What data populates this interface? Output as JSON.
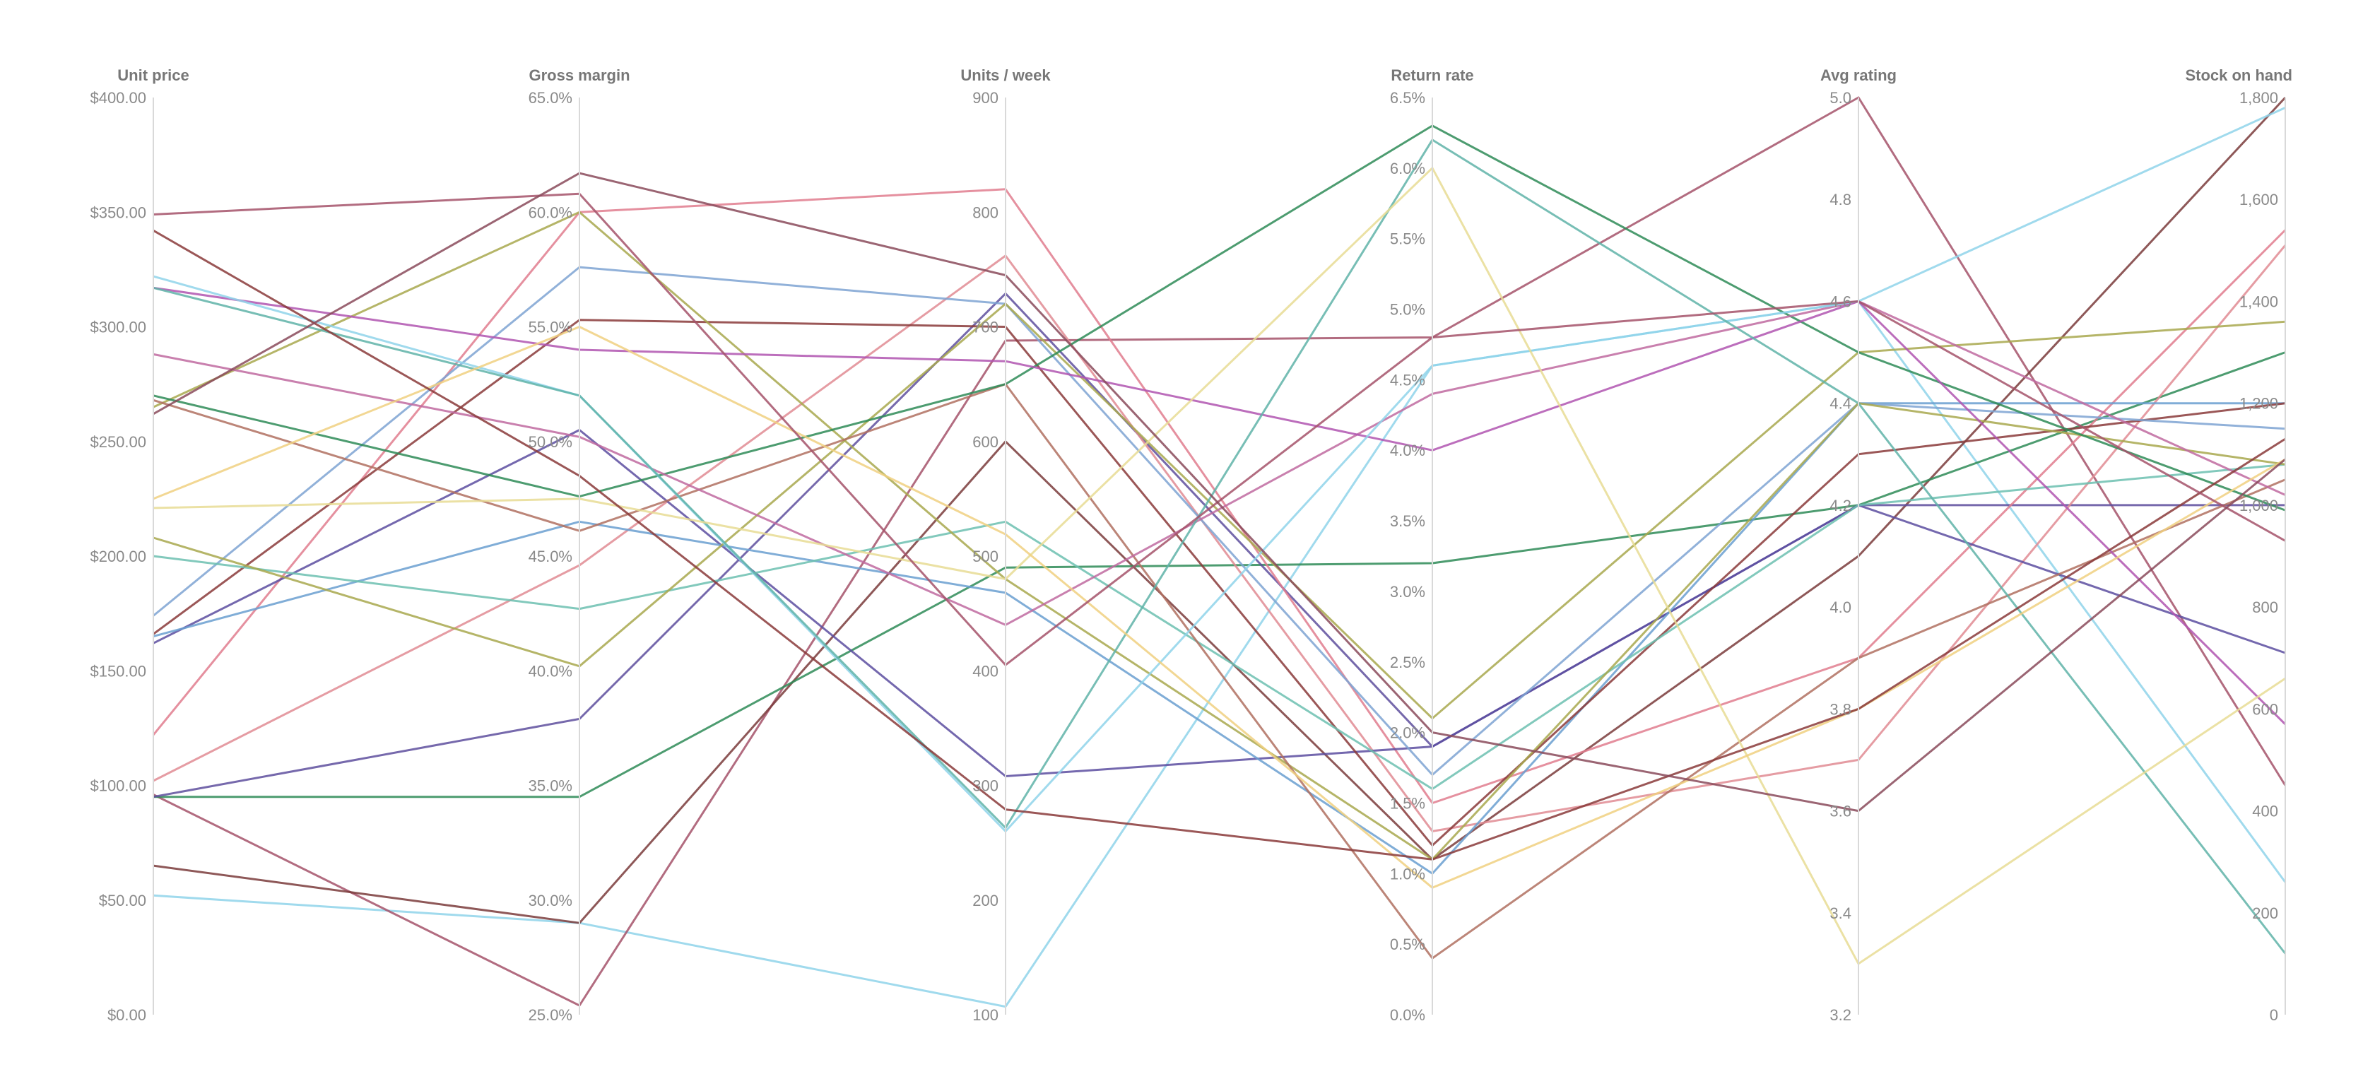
{
  "chart_data": {
    "type": "parallel-coordinates",
    "grid": false,
    "legend": "none",
    "axes": [
      {
        "key": "price",
        "title": "Unit price",
        "range": [
          0,
          400
        ],
        "ticks": [
          "$0.00",
          "$50.00",
          "$100.00",
          "$150.00",
          "$200.00",
          "$250.00",
          "$300.00",
          "$350.00",
          "$400.00"
        ]
      },
      {
        "key": "margin",
        "title": "Gross margin",
        "range": [
          25,
          65
        ],
        "ticks": [
          "25.0%",
          "30.0%",
          "35.0%",
          "40.0%",
          "45.0%",
          "50.0%",
          "55.0%",
          "60.0%",
          "65.0%"
        ]
      },
      {
        "key": "units",
        "title": "Units / week",
        "range": [
          100,
          900
        ],
        "ticks": [
          "100",
          "200",
          "300",
          "400",
          "500",
          "600",
          "700",
          "800",
          "900"
        ]
      },
      {
        "key": "returns",
        "title": "Return rate",
        "range": [
          0,
          6.5
        ],
        "ticks": [
          "0.0%",
          "0.5%",
          "1.0%",
          "1.5%",
          "2.0%",
          "2.5%",
          "3.0%",
          "3.5%",
          "4.0%",
          "4.5%",
          "5.0%",
          "5.5%",
          "6.0%",
          "6.5%"
        ]
      },
      {
        "key": "rating",
        "title": "Avg rating",
        "range": [
          3.2,
          5.0
        ],
        "ticks": [
          "3.2",
          "3.4",
          "3.6",
          "3.8",
          "4.0",
          "4.2",
          "4.4",
          "4.6",
          "4.8",
          "5.0"
        ]
      },
      {
        "key": "stock",
        "title": "Stock on hand",
        "range": [
          0,
          1800
        ],
        "ticks": [
          "0",
          "200",
          "400",
          "600",
          "800",
          "1,000",
          "1,200",
          "1,400",
          "1,600",
          "1,800"
        ]
      }
    ],
    "series": [
      {
        "color": "#8fd3ea",
        "values": [
          52,
          29.0,
          107,
          4.6,
          4.6,
          260
        ]
      },
      {
        "color": "#a4526a",
        "values": [
          96,
          25.4,
          688,
          4.8,
          5.0,
          450
        ]
      },
      {
        "color": "#7a3b3b",
        "values": [
          65,
          29.0,
          600,
          1.1,
          4.1,
          1800
        ]
      },
      {
        "color": "#2e8b57",
        "values": [
          95,
          34.5,
          490,
          3.2,
          4.2,
          1300
        ]
      },
      {
        "color": "#5e4f9e",
        "values": [
          95,
          37.9,
          729,
          1.9,
          4.2,
          1000
        ]
      },
      {
        "color": "#e08b93",
        "values": [
          102,
          44.6,
          762,
          1.3,
          3.7,
          1510
        ]
      },
      {
        "color": "#e07c8e",
        "values": [
          122,
          60.0,
          820,
          1.5,
          3.9,
          1540
        ]
      },
      {
        "color": "#5c4da0",
        "values": [
          162,
          50.5,
          308,
          1.9,
          4.2,
          710
        ]
      },
      {
        "color": "#6a9fd0",
        "values": [
          165,
          46.5,
          468,
          1.0,
          4.4,
          1200
        ]
      },
      {
        "color": "#8a3a3a",
        "values": [
          166,
          55.3,
          700,
          1.2,
          4.3,
          1200
        ]
      },
      {
        "color": "#7ea3d2",
        "values": [
          174,
          57.6,
          720,
          1.7,
          4.4,
          1150
        ]
      },
      {
        "color": "#6cbfb0",
        "values": [
          200,
          42.7,
          530,
          1.6,
          4.2,
          1080
        ]
      },
      {
        "color": "#a8a84e",
        "values": [
          208,
          40.2,
          720,
          2.1,
          4.5,
          1360
        ]
      },
      {
        "color": "#a8a84e",
        "values": [
          265,
          60.0,
          480,
          1.1,
          4.4,
          1080
        ]
      },
      {
        "color": "#b07060",
        "values": [
          268,
          46.1,
          650,
          0.4,
          3.9,
          1050
        ]
      },
      {
        "color": "#2e8b57",
        "values": [
          270,
          47.6,
          650,
          6.3,
          4.5,
          990
        ]
      },
      {
        "color": "#c06aa0",
        "values": [
          288,
          50.2,
          440,
          4.4,
          4.6,
          1020
        ]
      },
      {
        "color": "#b055b0",
        "values": [
          317,
          54.0,
          670,
          4.0,
          4.6,
          570
        ]
      },
      {
        "color": "#8fd3ea",
        "values": [
          322,
          52.0,
          260,
          4.6,
          4.6,
          1780
        ]
      },
      {
        "color": "#5fb3a8",
        "values": [
          317,
          52.0,
          263,
          6.2,
          4.4,
          120
        ]
      },
      {
        "color": "#e8dc94",
        "values": [
          221,
          47.5,
          480,
          6.0,
          3.3,
          660
        ]
      },
      {
        "color": "#f0d080",
        "values": [
          225,
          55.0,
          519,
          0.9,
          3.8,
          1090
        ]
      },
      {
        "color": "#8a3a3a",
        "values": [
          342,
          48.5,
          279,
          1.1,
          3.8,
          1130
        ]
      },
      {
        "color": "#a4526a",
        "values": [
          349,
          60.8,
          405,
          4.8,
          4.6,
          930
        ]
      },
      {
        "color": "#8a4a5a",
        "values": [
          262,
          61.7,
          745,
          2.0,
          3.6,
          1090
        ]
      }
    ]
  }
}
